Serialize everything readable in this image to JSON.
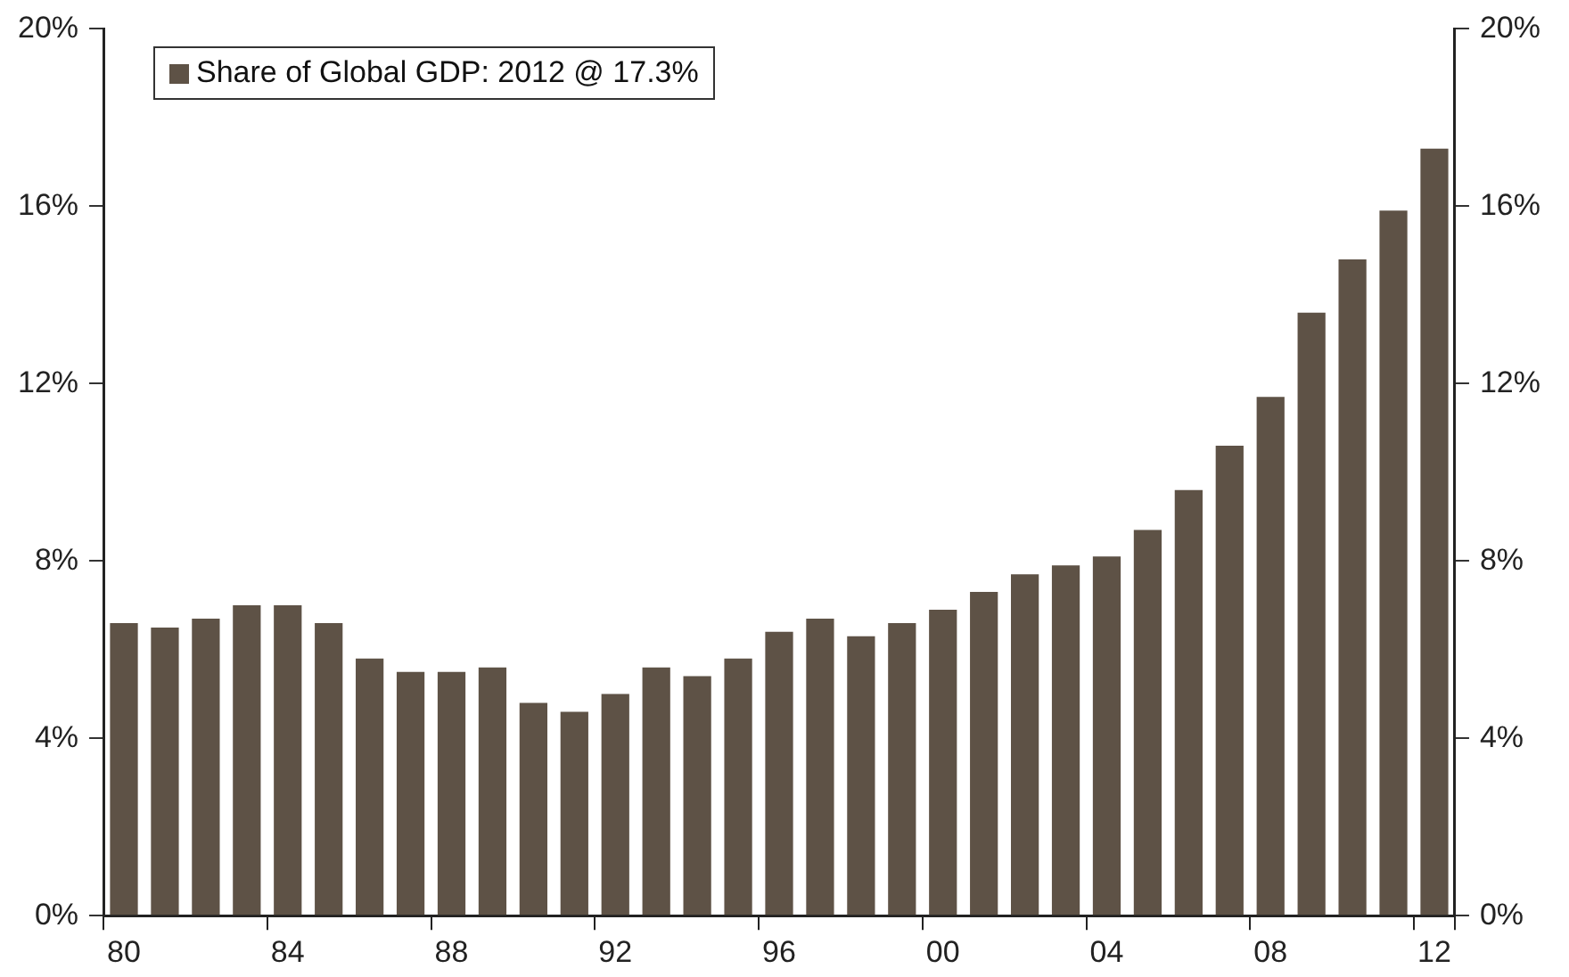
{
  "chart_data": {
    "type": "bar",
    "categories": [
      "80",
      null,
      null,
      null,
      "84",
      null,
      null,
      null,
      "88",
      null,
      null,
      null,
      "92",
      null,
      null,
      null,
      "96",
      null,
      null,
      null,
      "00",
      null,
      null,
      null,
      "04",
      null,
      null,
      null,
      "08",
      null,
      null,
      null,
      "12"
    ],
    "series": [
      {
        "name": "Share of Global GDP: 2012 @ 17.3%",
        "color": "#5e5246",
        "values": [
          6.6,
          6.5,
          6.7,
          7.0,
          7.0,
          6.6,
          5.8,
          5.5,
          5.5,
          5.6,
          4.8,
          4.6,
          5.0,
          5.6,
          5.4,
          5.8,
          6.4,
          6.7,
          6.3,
          6.6,
          6.9,
          7.3,
          7.7,
          7.9,
          8.1,
          8.7,
          9.6,
          10.6,
          11.7,
          13.6,
          14.8,
          15.9,
          17.3
        ]
      }
    ],
    "ylim": [
      0,
      20
    ],
    "yticks": [
      {
        "value": 0,
        "label": "0%"
      },
      {
        "value": 4,
        "label": "4%"
      },
      {
        "value": 8,
        "label": "8%"
      },
      {
        "value": 12,
        "label": "12%"
      },
      {
        "value": 16,
        "label": "16%"
      },
      {
        "value": 20,
        "label": "20%"
      }
    ],
    "y2lim": [
      0,
      20
    ],
    "y2ticks": [
      {
        "value": 0,
        "label": "0%"
      },
      {
        "value": 4,
        "label": "4%"
      },
      {
        "value": 8,
        "label": "8%"
      },
      {
        "value": 12,
        "label": "12%"
      },
      {
        "value": 16,
        "label": "16%"
      },
      {
        "value": 20,
        "label": "20%"
      }
    ],
    "grid": false,
    "legend": "top left"
  }
}
